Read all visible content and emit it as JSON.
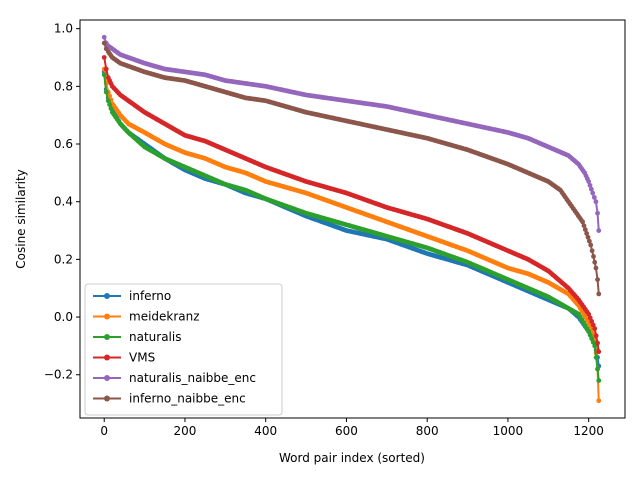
{
  "chart_data": {
    "type": "line",
    "title": "",
    "xlabel": "Word pair index (sorted)",
    "ylabel": "Cosine similarity",
    "xlim": [
      -60,
      1290
    ],
    "ylim": [
      -0.35,
      1.03
    ],
    "xticks": [
      0,
      200,
      400,
      600,
      800,
      1000,
      1200
    ],
    "yticks": [
      -0.2,
      0.0,
      0.2,
      0.4,
      0.6,
      0.8,
      1.0
    ],
    "ytick_labels": [
      "−0.2",
      "0.0",
      "0.2",
      "0.4",
      "0.6",
      "0.8",
      "1.0"
    ],
    "grid": false,
    "legend_position": "lower-left",
    "marker": "circle",
    "series": [
      {
        "name": "inferno",
        "color": "#1f77b4",
        "x": [
          0,
          5,
          10,
          20,
          40,
          60,
          100,
          150,
          200,
          250,
          300,
          350,
          400,
          500,
          600,
          700,
          800,
          900,
          1000,
          1050,
          1100,
          1150,
          1175,
          1200,
          1215,
          1222,
          1225
        ],
        "y": [
          0.85,
          0.79,
          0.76,
          0.72,
          0.67,
          0.64,
          0.6,
          0.55,
          0.51,
          0.48,
          0.46,
          0.43,
          0.41,
          0.35,
          0.3,
          0.27,
          0.22,
          0.18,
          0.12,
          0.09,
          0.06,
          0.03,
          0.0,
          -0.05,
          -0.09,
          -0.14,
          -0.17
        ]
      },
      {
        "name": "meidekranz",
        "color": "#ff7f0e",
        "x": [
          0,
          5,
          10,
          20,
          40,
          60,
          100,
          150,
          200,
          250,
          300,
          350,
          400,
          500,
          600,
          700,
          800,
          900,
          1000,
          1050,
          1100,
          1150,
          1175,
          1200,
          1215,
          1222,
          1225
        ],
        "y": [
          0.86,
          0.81,
          0.78,
          0.74,
          0.7,
          0.67,
          0.64,
          0.6,
          0.57,
          0.55,
          0.52,
          0.5,
          0.47,
          0.43,
          0.38,
          0.33,
          0.28,
          0.23,
          0.17,
          0.15,
          0.12,
          0.08,
          0.04,
          -0.02,
          -0.07,
          -0.18,
          -0.29
        ]
      },
      {
        "name": "naturalis",
        "color": "#2ca02c",
        "x": [
          0,
          5,
          10,
          20,
          40,
          60,
          100,
          150,
          200,
          250,
          300,
          350,
          400,
          500,
          600,
          700,
          800,
          900,
          1000,
          1050,
          1100,
          1150,
          1175,
          1200,
          1215,
          1222,
          1225
        ],
        "y": [
          0.84,
          0.78,
          0.75,
          0.71,
          0.67,
          0.64,
          0.59,
          0.55,
          0.52,
          0.49,
          0.46,
          0.44,
          0.41,
          0.36,
          0.32,
          0.28,
          0.24,
          0.19,
          0.13,
          0.1,
          0.07,
          0.03,
          0.01,
          -0.05,
          -0.1,
          -0.18,
          -0.22
        ]
      },
      {
        "name": "VMS",
        "color": "#d62728",
        "x": [
          0,
          5,
          10,
          20,
          40,
          60,
          100,
          150,
          200,
          250,
          300,
          350,
          400,
          500,
          600,
          700,
          800,
          900,
          1000,
          1050,
          1100,
          1150,
          1175,
          1200,
          1215,
          1222,
          1225
        ],
        "y": [
          0.9,
          0.86,
          0.83,
          0.8,
          0.77,
          0.75,
          0.71,
          0.67,
          0.63,
          0.61,
          0.58,
          0.55,
          0.52,
          0.47,
          0.43,
          0.38,
          0.34,
          0.29,
          0.23,
          0.2,
          0.16,
          0.1,
          0.06,
          0.01,
          -0.04,
          -0.09,
          -0.12
        ]
      },
      {
        "name": "naturalis_naibbe_enc",
        "color": "#9467bd",
        "x": [
          0,
          5,
          10,
          20,
          40,
          60,
          100,
          150,
          200,
          250,
          300,
          350,
          400,
          500,
          600,
          700,
          800,
          900,
          1000,
          1050,
          1100,
          1150,
          1175,
          1190,
          1200,
          1210,
          1218,
          1222,
          1225
        ],
        "y": [
          0.97,
          0.95,
          0.94,
          0.93,
          0.91,
          0.9,
          0.88,
          0.86,
          0.85,
          0.84,
          0.82,
          0.81,
          0.8,
          0.77,
          0.75,
          0.73,
          0.7,
          0.67,
          0.64,
          0.62,
          0.59,
          0.56,
          0.53,
          0.5,
          0.47,
          0.43,
          0.4,
          0.36,
          0.3
        ]
      },
      {
        "name": "inferno_naibbe_enc",
        "color": "#8c564b",
        "x": [
          0,
          5,
          10,
          20,
          40,
          60,
          100,
          150,
          200,
          250,
          300,
          350,
          400,
          500,
          600,
          700,
          800,
          900,
          1000,
          1050,
          1100,
          1130,
          1150,
          1170,
          1185,
          1195,
          1205,
          1212,
          1218,
          1222,
          1225
        ],
        "y": [
          0.95,
          0.93,
          0.92,
          0.9,
          0.88,
          0.87,
          0.85,
          0.83,
          0.82,
          0.8,
          0.78,
          0.76,
          0.75,
          0.71,
          0.68,
          0.65,
          0.62,
          0.58,
          0.53,
          0.5,
          0.47,
          0.44,
          0.4,
          0.36,
          0.33,
          0.29,
          0.25,
          0.21,
          0.17,
          0.13,
          0.08
        ]
      }
    ]
  }
}
